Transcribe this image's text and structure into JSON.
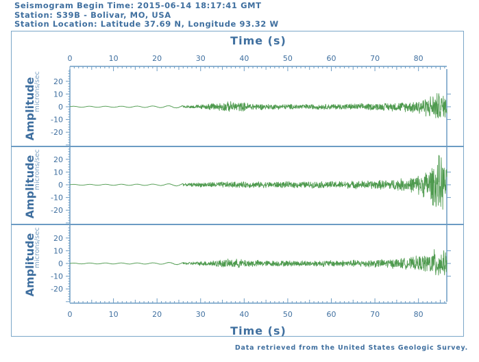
{
  "header": {
    "begin_time": "Seismogram Begin Time: 2015-06-14 18:17:41 GMT",
    "station": "Station: S39B - Bolivar, MO, USA",
    "location": "Station Location: Latitude 37.69 N, Longitude 93.32 W"
  },
  "footer": {
    "credit": "Data retrieved from the United States Geologic Survey."
  },
  "colors": {
    "trace": "#4e9a4e",
    "axis": "#6b9bc3",
    "text": "#3f6f9f"
  },
  "chart_data": {
    "type": "line",
    "xlabel": "Time (s)",
    "x_ticks": [
      0,
      10,
      20,
      30,
      40,
      50,
      60,
      70,
      80
    ],
    "xlim": [
      0,
      86.5
    ],
    "panels": [
      {
        "name": "",
        "ylabel": "Amplitude",
        "yunit": "microns/sec",
        "y_ticks": [
          -20,
          -10,
          0,
          10,
          20
        ],
        "ylim": [
          -31,
          29
        ],
        "envelope": [
          {
            "t": 0,
            "a": 0.4
          },
          {
            "t": 10,
            "a": 0.4
          },
          {
            "t": 20,
            "a": 0.6
          },
          {
            "t": 26,
            "a": 1.0
          },
          {
            "t": 30,
            "a": 1.8
          },
          {
            "t": 34,
            "a": 3.5
          },
          {
            "t": 37,
            "a": 4.5
          },
          {
            "t": 45,
            "a": 2.3
          },
          {
            "t": 55,
            "a": 2.2
          },
          {
            "t": 65,
            "a": 2.6
          },
          {
            "t": 72,
            "a": 3.2
          },
          {
            "t": 78,
            "a": 4.5
          },
          {
            "t": 82,
            "a": 8.5
          },
          {
            "t": 84.5,
            "a": 12.5
          },
          {
            "t": 86.5,
            "a": 9.0
          }
        ]
      },
      {
        "name": "",
        "ylabel": "Amplitude",
        "yunit": "microns/sec",
        "y_ticks": [
          -20,
          -10,
          0,
          10,
          20
        ],
        "ylim": [
          -31,
          29
        ],
        "envelope": [
          {
            "t": 0,
            "a": 0.3
          },
          {
            "t": 10,
            "a": 0.4
          },
          {
            "t": 20,
            "a": 0.5
          },
          {
            "t": 26,
            "a": 1.0
          },
          {
            "t": 30,
            "a": 2.0
          },
          {
            "t": 35,
            "a": 2.6
          },
          {
            "t": 45,
            "a": 2.6
          },
          {
            "t": 55,
            "a": 2.8
          },
          {
            "t": 65,
            "a": 3.3
          },
          {
            "t": 72,
            "a": 4.0
          },
          {
            "t": 78,
            "a": 6.0
          },
          {
            "t": 81,
            "a": 10.0
          },
          {
            "t": 83.5,
            "a": 18.0
          },
          {
            "t": 85,
            "a": 27.0
          },
          {
            "t": 86.5,
            "a": 13.0
          }
        ]
      },
      {
        "name": "",
        "ylabel": "Amplitude",
        "yunit": "microns/sec",
        "y_ticks": [
          -20,
          -10,
          0,
          10,
          20
        ],
        "ylim": [
          -31,
          29
        ],
        "envelope": [
          {
            "t": 0,
            "a": 0.3
          },
          {
            "t": 10,
            "a": 0.4
          },
          {
            "t": 20,
            "a": 0.5
          },
          {
            "t": 26,
            "a": 1.0
          },
          {
            "t": 30,
            "a": 1.8
          },
          {
            "t": 35,
            "a": 3.5
          },
          {
            "t": 38,
            "a": 3.8
          },
          {
            "t": 45,
            "a": 2.5
          },
          {
            "t": 55,
            "a": 2.5
          },
          {
            "t": 65,
            "a": 3.0
          },
          {
            "t": 72,
            "a": 3.6
          },
          {
            "t": 78,
            "a": 5.0
          },
          {
            "t": 82,
            "a": 8.0
          },
          {
            "t": 84.5,
            "a": 14.0
          },
          {
            "t": 86.5,
            "a": 9.0
          }
        ]
      }
    ]
  }
}
